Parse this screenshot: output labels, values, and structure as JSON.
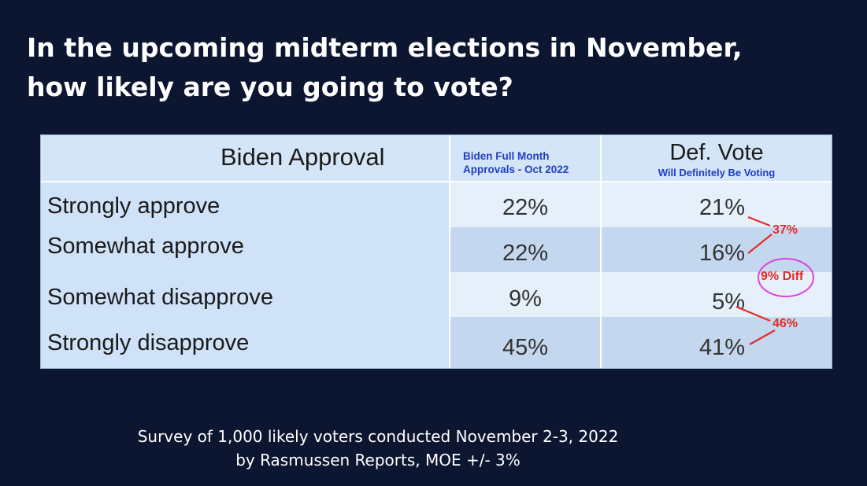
{
  "title": {
    "line1": "In the upcoming midterm elections in November,",
    "line2": "how likely are you going to vote?"
  },
  "chart_data": {
    "type": "table",
    "columns": [
      {
        "label": "Biden Approval"
      },
      {
        "label": "Biden Full Month Approvals - Oct 2022"
      },
      {
        "label": "Def. Vote",
        "sublabel": "Will Definitely Be Voting"
      }
    ],
    "rows": [
      {
        "label": "Strongly approve",
        "full_month": "22%",
        "def_vote": "21%"
      },
      {
        "label": "Somewhat approve",
        "full_month": "22%",
        "def_vote": "16%"
      },
      {
        "label": "Somewhat disapprove",
        "full_month": "9%",
        "def_vote": "5%"
      },
      {
        "label": "Strongly disapprove",
        "full_month": "45%",
        "def_vote": "41%"
      }
    ],
    "annotations": {
      "approve_total": "37%",
      "difference": "9% Diff",
      "disapprove_total": "46%"
    },
    "annotation_color": "#e52a2a",
    "diff_circle_color": "#e040e0"
  },
  "footnote": {
    "line1": "Survey of 1,000 likely voters conducted November 2-3, 2022",
    "line2": "by Rasmussen Reports, MOE +/- 3%"
  }
}
